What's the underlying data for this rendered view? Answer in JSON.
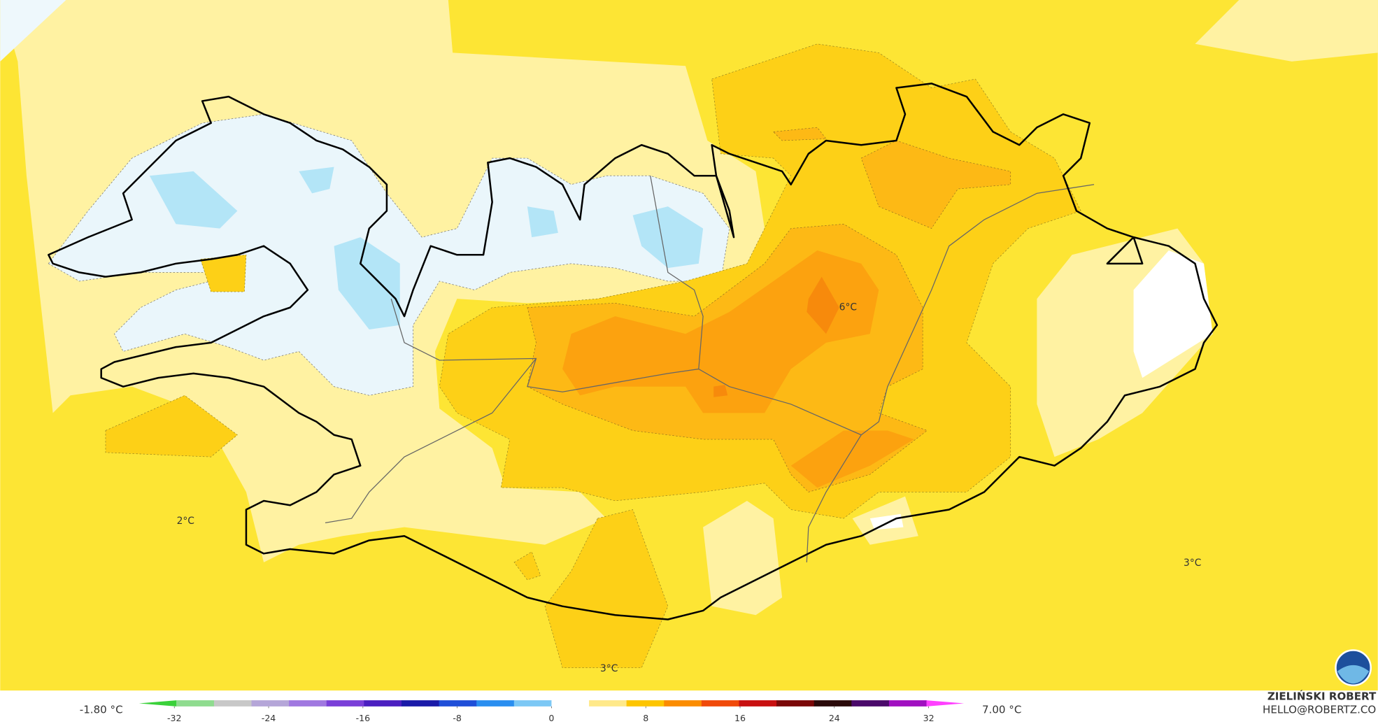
{
  "map": {
    "labels": [
      "6°C",
      "2°C",
      "3°C",
      "3°C"
    ]
  },
  "legend": {
    "min_label": "-1.80 °C",
    "max_label": "7.00 °C",
    "range": [
      -35,
      35
    ],
    "ticks": [
      -32,
      -24,
      -16,
      -8,
      0,
      8,
      16,
      24,
      32
    ],
    "colors": [
      "#3ad13a",
      "#8fdc8f",
      "#c8c8c8",
      "#b5a6d8",
      "#a078e0",
      "#7a3fd8",
      "#4b1fc0",
      "#1a1aa8",
      "#1f4fd8",
      "#2a8ef0",
      "#7cc8f5",
      "#ffffff",
      "#ffe98a",
      "#fdc500",
      "#fb8c00",
      "#f04a0a",
      "#c81010",
      "#7a0808",
      "#2a0a0a",
      "#4a0a6a",
      "#a010c0",
      "#ff40ff"
    ]
  },
  "credit": {
    "name": "ZIELIŃSKI ROBERT",
    "email": "HELLO@ROBERTZ.CO"
  }
}
